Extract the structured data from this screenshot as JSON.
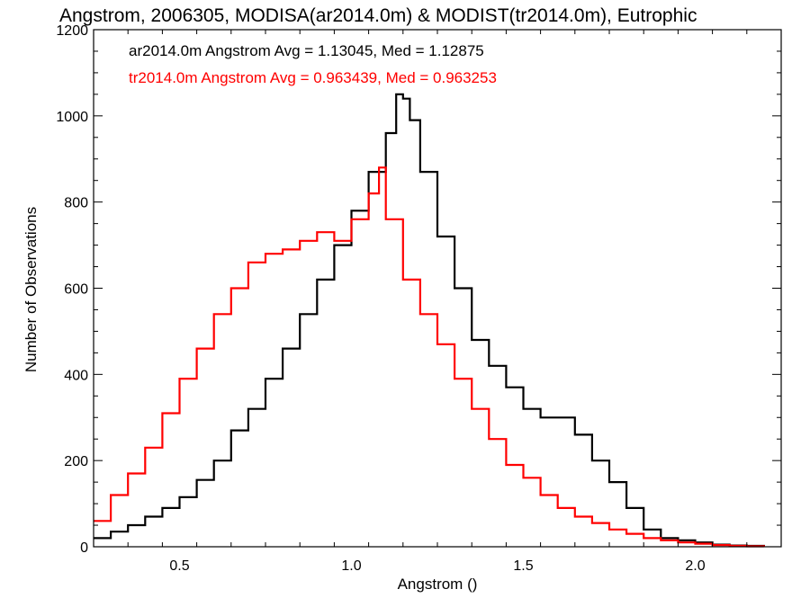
{
  "chart_data": {
    "type": "line",
    "title": "Angstrom, 2006305, MODISA(ar2014.0m) & MODIST(tr2014.0m), Eutrophic",
    "xlabel": "Angstrom ()",
    "ylabel": "Number of Observations",
    "xlim": [
      0.25,
      2.25
    ],
    "ylim": [
      0,
      1200
    ],
    "xticks": [
      0.5,
      1.0,
      1.5,
      2.0
    ],
    "xtick_labels": [
      "0.5",
      "1.0",
      "1.5",
      "2.0"
    ],
    "yticks": [
      0,
      200,
      400,
      600,
      800,
      1000,
      1200
    ],
    "ytick_labels": [
      "0",
      "200",
      "400",
      "600",
      "800",
      "1000",
      "1200"
    ],
    "grid": false,
    "legend_position": "top-left",
    "series": [
      {
        "name": "ar2014.0m Angstrom Avg = 1.13045, Med = 1.12875",
        "color": "#000000",
        "x": [
          0.25,
          0.3,
          0.35,
          0.4,
          0.45,
          0.5,
          0.55,
          0.6,
          0.65,
          0.7,
          0.75,
          0.8,
          0.85,
          0.9,
          0.95,
          1.0,
          1.05,
          1.1,
          1.13,
          1.15,
          1.17,
          1.2,
          1.25,
          1.3,
          1.35,
          1.4,
          1.45,
          1.5,
          1.55,
          1.6,
          1.65,
          1.7,
          1.75,
          1.8,
          1.85,
          1.9,
          1.95,
          2.0,
          2.05,
          2.1,
          2.15,
          2.2
        ],
        "values": [
          20,
          35,
          50,
          70,
          90,
          115,
          155,
          200,
          270,
          320,
          390,
          460,
          540,
          620,
          700,
          780,
          870,
          960,
          1050,
          1040,
          990,
          870,
          720,
          600,
          480,
          420,
          370,
          320,
          300,
          300,
          260,
          200,
          150,
          90,
          40,
          20,
          15,
          10,
          5,
          3,
          2,
          0
        ]
      },
      {
        "name": "tr2014.0m Angstrom Avg = 0.963439, Med = 0.963253",
        "color": "#ff0000",
        "x": [
          0.25,
          0.3,
          0.35,
          0.4,
          0.45,
          0.5,
          0.55,
          0.6,
          0.65,
          0.7,
          0.75,
          0.8,
          0.85,
          0.9,
          0.95,
          1.0,
          1.05,
          1.08,
          1.1,
          1.15,
          1.2,
          1.25,
          1.3,
          1.35,
          1.4,
          1.45,
          1.5,
          1.55,
          1.6,
          1.65,
          1.7,
          1.75,
          1.8,
          1.85,
          1.9,
          1.95,
          2.0,
          2.05,
          2.1,
          2.15,
          2.2
        ],
        "values": [
          60,
          120,
          170,
          230,
          310,
          390,
          460,
          540,
          600,
          660,
          680,
          690,
          710,
          730,
          710,
          760,
          820,
          880,
          760,
          620,
          540,
          470,
          390,
          320,
          250,
          190,
          160,
          120,
          90,
          70,
          55,
          40,
          30,
          20,
          15,
          10,
          7,
          4,
          2,
          1,
          0
        ]
      }
    ]
  }
}
